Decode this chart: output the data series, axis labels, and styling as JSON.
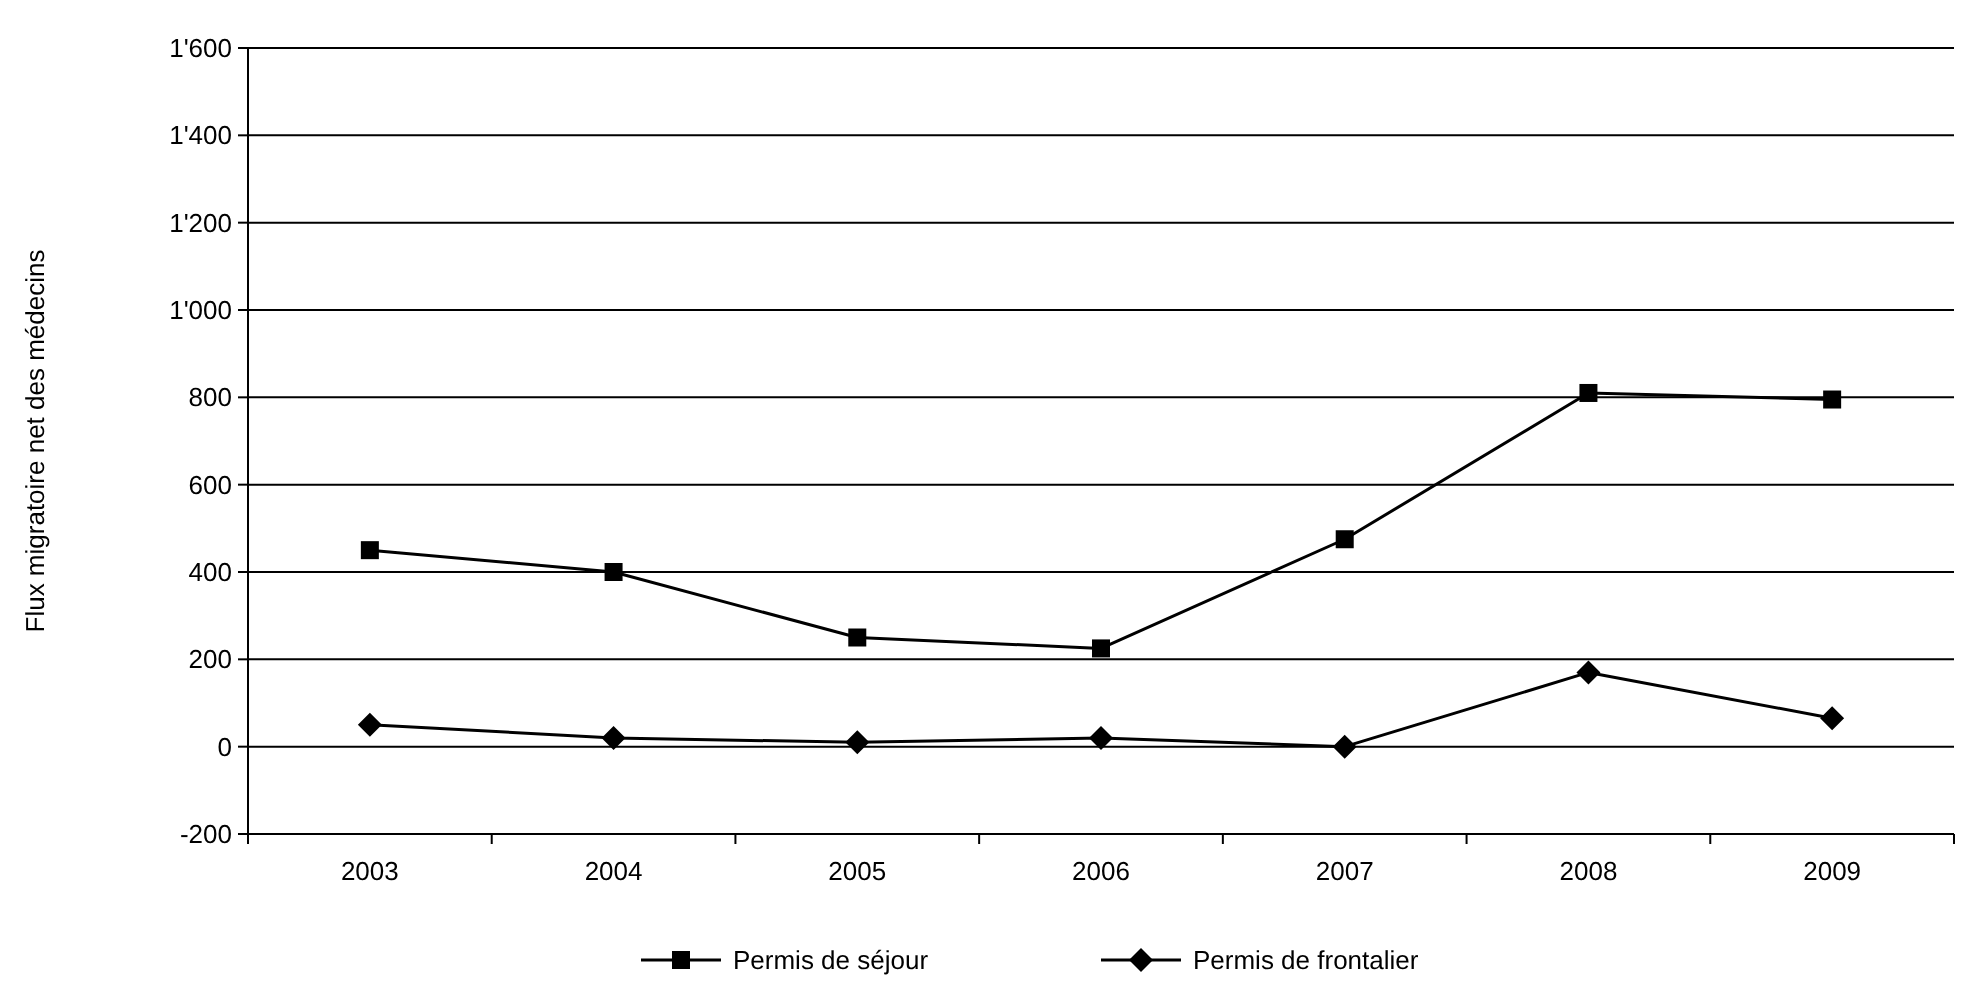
{
  "chart_data": {
    "type": "line",
    "ylabel": "Flux migratoire net des médecins",
    "categories": [
      "2003",
      "2004",
      "2005",
      "2006",
      "2007",
      "2008",
      "2009"
    ],
    "series": [
      {
        "name": "Permis de séjour",
        "color": "#000000",
        "marker": "square",
        "values": [
          450,
          400,
          250,
          225,
          475,
          810,
          795
        ]
      },
      {
        "name": "Permis de frontalier",
        "color": "#000000",
        "marker": "diamond",
        "values": [
          50,
          20,
          10,
          20,
          0,
          170,
          65
        ]
      }
    ],
    "ylim": [
      -200,
      1600
    ],
    "yticks": [
      -200,
      0,
      200,
      400,
      600,
      800,
      {
        "value": 1000,
        "label": "1'000"
      },
      {
        "value": 1200,
        "label": "1'200"
      },
      {
        "value": 1400,
        "label": "1'400"
      },
      {
        "value": 1600,
        "label": "1'600"
      }
    ],
    "grid": "y",
    "legend": "bottom",
    "line_style": "solid"
  }
}
